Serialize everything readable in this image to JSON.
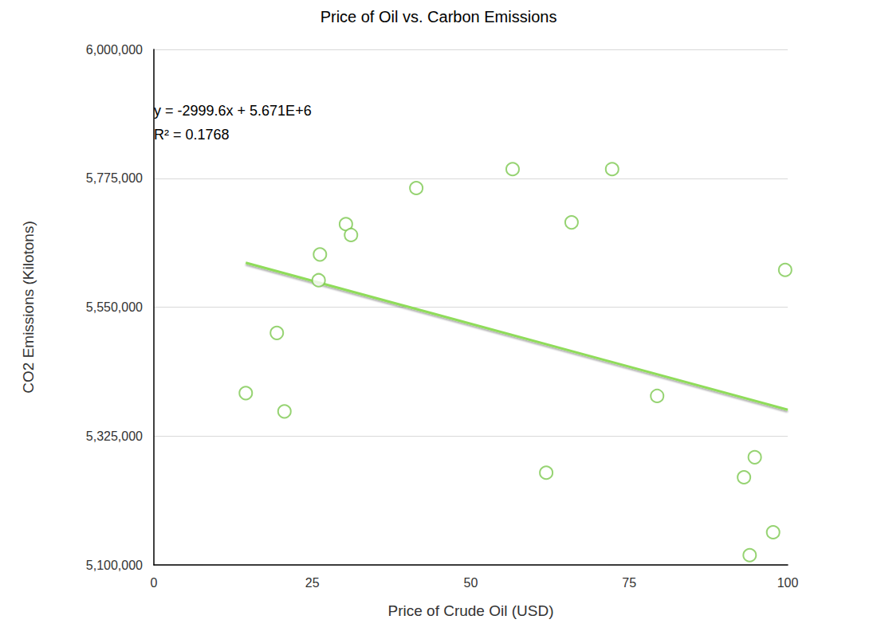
{
  "chart_data": {
    "type": "scatter",
    "title": "Price of Oil vs. Carbon Emissions",
    "x_label": "Price of Crude Oil (USD)",
    "y_label": "CO2 Emissions (Kilotons)",
    "annotations": [
      "y = -2999.6x + 5.671E+6",
      "R² = 0.1768"
    ],
    "xlim": [
      0,
      100
    ],
    "xticks": [
      0,
      25,
      50,
      75,
      100
    ],
    "ylim": [
      5100000,
      6000000
    ],
    "yticks": [
      {
        "value": 5100000,
        "label": "5,100,000"
      },
      {
        "value": 5325000,
        "label": "5,325,000"
      },
      {
        "value": 5550000,
        "label": "5,550,000"
      },
      {
        "value": 5775000,
        "label": "5,775,000"
      },
      {
        "value": 6000000,
        "label": "6,000,000"
      }
    ],
    "grid": "y",
    "series": [
      {
        "type": "scatter",
        "color": "#7cc84f",
        "marker": "circle-open",
        "x": [
          14.5,
          19.4,
          20.6,
          26.0,
          26.2,
          30.3,
          31.1,
          41.4,
          56.6,
          61.9,
          65.9,
          72.3,
          79.4,
          93.1,
          94.8,
          94.0,
          97.7,
          99.6
        ],
        "values": [
          5400000,
          5505000,
          5368000,
          5597000,
          5642000,
          5695000,
          5676000,
          5758000,
          5791000,
          5261000,
          5698000,
          5791000,
          5395000,
          5253000,
          5288000,
          5117000,
          5157000,
          5615000
        ]
      },
      {
        "type": "line",
        "color": "#8fdc5a",
        "line_style": "solid",
        "x": [
          14.5,
          100
        ],
        "values": [
          5627500,
          5371000
        ]
      }
    ]
  }
}
